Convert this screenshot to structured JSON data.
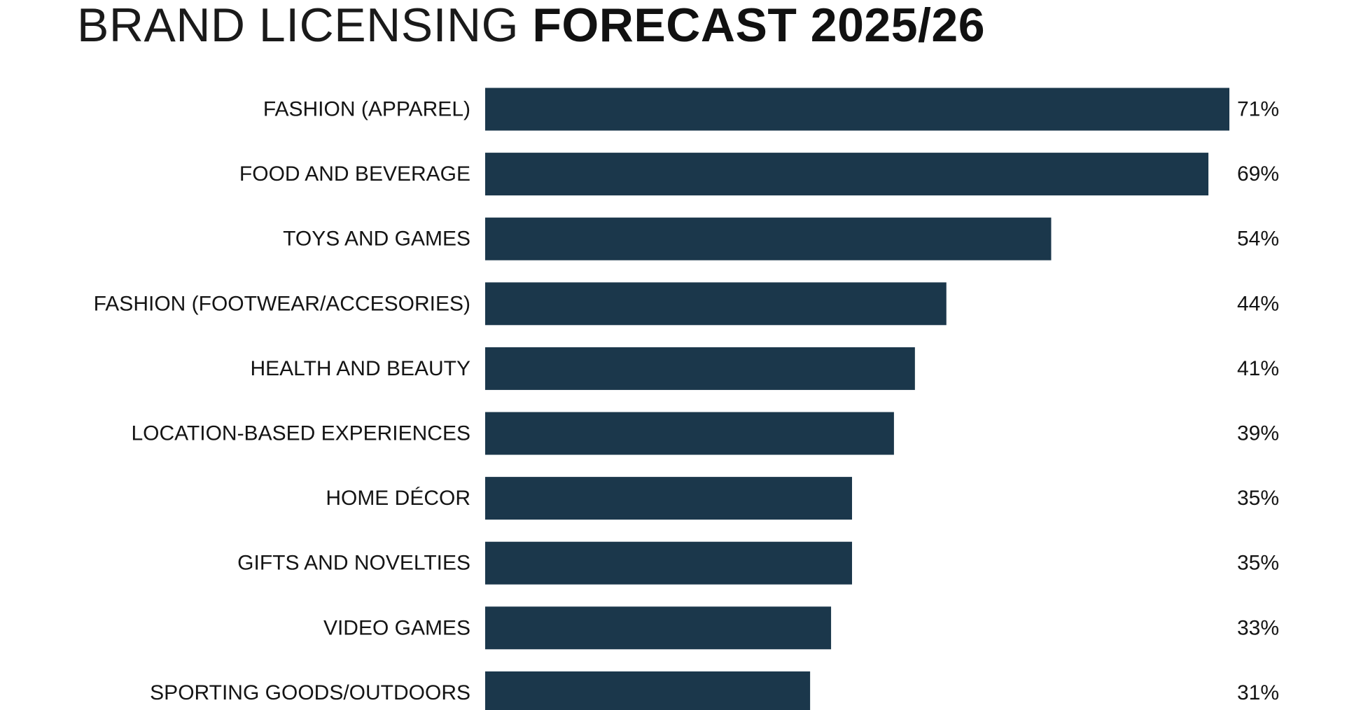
{
  "header": {
    "title_light": "BRAND LICENSING",
    "title_bold": "FORECAST 2025/26"
  },
  "colors": {
    "bar": "#1b374b",
    "text": "#141414"
  },
  "chart_data": {
    "type": "bar",
    "orientation": "horizontal",
    "title": "BRAND LICENSING FORECAST 2025/26",
    "categories": [
      "FASHION (APPAREL)",
      "FOOD AND BEVERAGE",
      "TOYS AND GAMES",
      "FASHION (FOOTWEAR/ACCESORIES)",
      "HEALTH AND BEAUTY",
      "LOCATION-BASED EXPERIENCES",
      "HOME DÉCOR",
      "GIFTS AND NOVELTIES",
      "VIDEO GAMES",
      "SPORTING GOODS/OUTDOORS"
    ],
    "values": [
      71,
      69,
      54,
      44,
      41,
      39,
      35,
      35,
      33,
      31
    ],
    "value_labels": [
      "71%",
      "69%",
      "54%",
      "44%",
      "41%",
      "39%",
      "35%",
      "35%",
      "33%",
      "31%"
    ],
    "unit": "%",
    "xlim": [
      0,
      71
    ],
    "grid": false,
    "legend": "none",
    "data_labels": "right"
  }
}
